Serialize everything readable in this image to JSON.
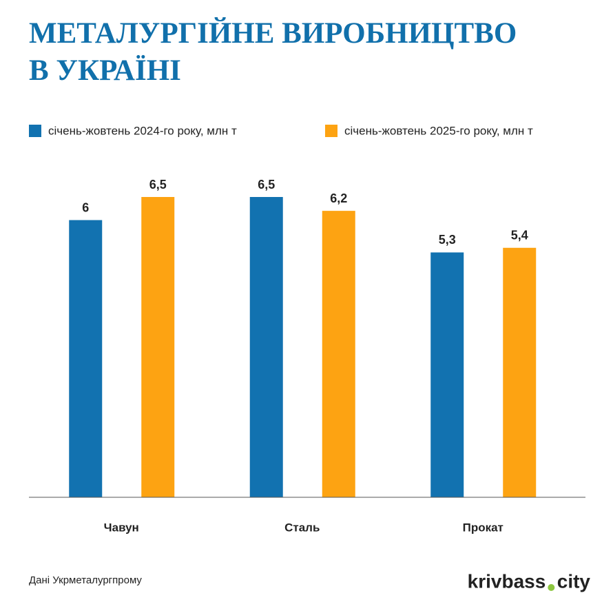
{
  "chart_data": {
    "type": "bar",
    "title": "МЕТАЛУРГІЙНЕ ВИРОБНИЦТВО В УКРАЇНІ",
    "categories": [
      "Чавун",
      "Сталь",
      "Прокат"
    ],
    "series": [
      {
        "name": "січень-жовтень 2024-го року, млн т",
        "color": "#1272b0",
        "values": [
          6,
          6.5,
          5.3
        ],
        "value_labels": [
          "6",
          "6,5",
          "5,3"
        ]
      },
      {
        "name": "січень-жовтень 2025-го року, млн т",
        "color": "#fda312",
        "values": [
          6.5,
          6.2,
          5.4
        ],
        "value_labels": [
          "6,5",
          "6,2",
          "5,4"
        ]
      }
    ],
    "source": "Дані Укрметалургпрому",
    "brand": [
      "krivbass",
      "city"
    ]
  }
}
